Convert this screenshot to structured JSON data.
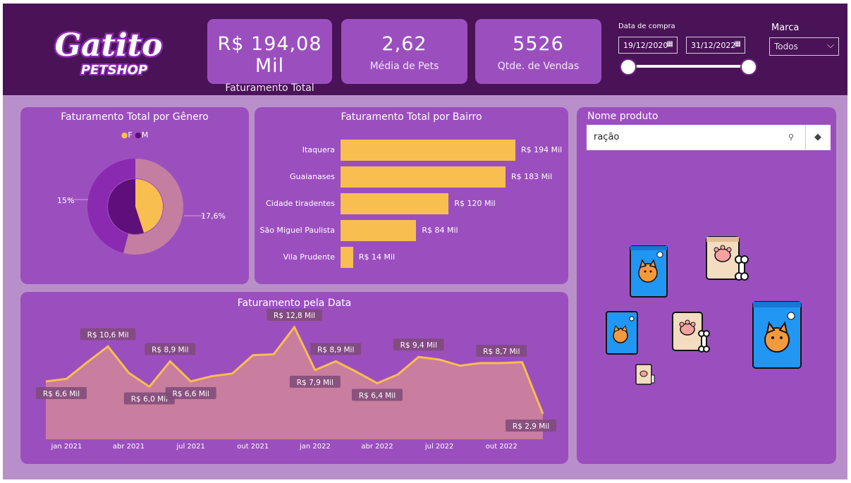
{
  "header": {
    "logo": {
      "line1": "Gatito",
      "line2": "PETSHOP"
    },
    "kpis": [
      {
        "value": "R$ 194,08 Mil",
        "label": "Faturamento Total"
      },
      {
        "value": "2,62",
        "label": "Média de Pets"
      },
      {
        "value": "5526",
        "label": "Qtde. de Vendas"
      }
    ],
    "date_filter": {
      "label": "Data de compra",
      "start": "19/12/2020",
      "end": "31/12/2022",
      "calendar_icon": "calendar-icon"
    },
    "brand_filter": {
      "label": "Marca",
      "selected": "Todos",
      "chevron_icon": "chevron-down-icon"
    }
  },
  "gender_panel": {
    "title": "Faturamento Total por Gênero",
    "legend": [
      {
        "label": "F",
        "color": "#f8be4f"
      },
      {
        "label": "M",
        "color": "#5e0f7a"
      }
    ],
    "labels": {
      "left": "15%",
      "right": "17,6%"
    }
  },
  "bairro_panel": {
    "title": "Faturamento Total por Bairro"
  },
  "date_panel": {
    "title": "Faturamento pela Data"
  },
  "product_panel": {
    "title": "Nome produto",
    "search_value": "ração",
    "search_icon": "search-icon",
    "eraser_icon": "eraser-icon"
  },
  "chart_data": [
    {
      "type": "pie",
      "title": "Faturamento Total por Gênero",
      "categories": [
        "F",
        "M"
      ],
      "series": [
        {
          "name": "outer",
          "values": [
            54,
            46
          ]
        },
        {
          "name": "inner",
          "values": [
            45,
            55
          ]
        }
      ],
      "data_labels": [
        "15%",
        "17,6%"
      ],
      "legend": "top",
      "colors": {
        "F": "#f8be4f",
        "M": "#5e0f7a"
      }
    },
    {
      "type": "bar",
      "orientation": "horizontal",
      "title": "Faturamento Total por Bairro",
      "categories": [
        "Itaquera",
        "Guaianases",
        "Cidade tiradentes",
        "São Miguel Paulista",
        "Vila Prudente"
      ],
      "values": [
        194,
        183,
        120,
        84,
        14
      ],
      "data_labels": [
        "R$ 194 Mil",
        "R$ 183 Mil",
        "R$ 120 Mil",
        "R$ 84 Mil",
        "R$ 14 Mil"
      ],
      "color": "#f8be4f"
    },
    {
      "type": "area",
      "title": "Faturamento pela Data",
      "x_ticks": [
        "jan 2021",
        "abr 2021",
        "jul 2021",
        "out 2021",
        "jan 2022",
        "abr 2022",
        "jul 2022",
        "out 2022"
      ],
      "x": [
        "2020-12",
        "2021-01",
        "2021-02",
        "2021-03",
        "2021-04",
        "2021-05",
        "2021-06",
        "2021-07",
        "2021-08",
        "2021-09",
        "2021-10",
        "2021-11",
        "2021-12",
        "2022-01",
        "2022-02",
        "2022-03",
        "2022-04",
        "2022-05",
        "2022-06",
        "2022-07",
        "2022-08",
        "2022-09",
        "2022-10",
        "2022-11",
        "2022-12"
      ],
      "values": [
        6.6,
        6.9,
        8.8,
        10.6,
        7.6,
        6.0,
        8.9,
        6.6,
        7.2,
        7.5,
        9.6,
        9.7,
        12.8,
        7.9,
        8.9,
        7.7,
        6.4,
        7.4,
        9.4,
        9.1,
        8.4,
        8.7,
        8.7,
        8.8,
        2.9
      ],
      "data_labels": [
        {
          "index": 0,
          "text": "R$ 6,6 Mil"
        },
        {
          "index": 3,
          "text": "R$ 10,6 Mil"
        },
        {
          "index": 5,
          "text": "R$ 6,0 Mil"
        },
        {
          "index": 6,
          "text": "R$ 8,9 Mil"
        },
        {
          "index": 7,
          "text": "R$ 6,6 Mil"
        },
        {
          "index": 12,
          "text": "R$ 12,8 Mil"
        },
        {
          "index": 13,
          "text": "R$ 7,9 Mil"
        },
        {
          "index": 14,
          "text": "R$ 8,9 Mil"
        },
        {
          "index": 16,
          "text": "R$ 6,4 Mil"
        },
        {
          "index": 18,
          "text": "R$ 9,4 Mil"
        },
        {
          "index": 22,
          "text": "R$ 8,7 Mil"
        },
        {
          "index": 24,
          "text": "R$ 2,9 Mil"
        }
      ],
      "line_color": "#f8be4f",
      "fill_color": "#c97d9f"
    }
  ]
}
